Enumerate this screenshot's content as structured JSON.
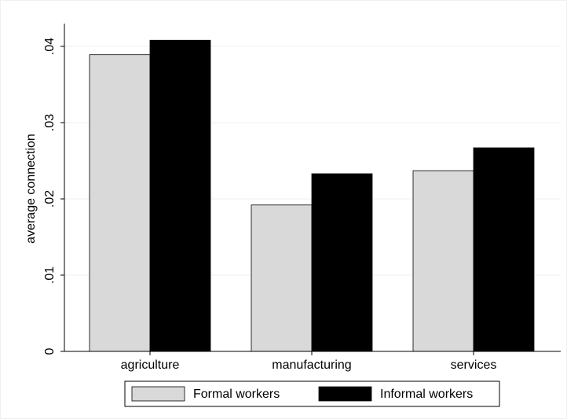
{
  "chart_data": {
    "type": "bar",
    "y_label": "average connection",
    "categories": [
      "agriculture",
      "manufacturing",
      "services"
    ],
    "series": [
      {
        "name": "Formal workers",
        "color": "#d9d9d9",
        "values": [
          0.0389,
          0.0192,
          0.0237
        ]
      },
      {
        "name": "Informal workers",
        "color": "#000000",
        "values": [
          0.0408,
          0.0233,
          0.0267
        ]
      }
    ],
    "ylim": [
      0,
      0.04
    ],
    "yticks": [
      0,
      {
        "value": 0.01,
        "label": ".01"
      },
      {
        "value": 0.02,
        "label": ".02"
      },
      {
        "value": 0.03,
        "label": ".03"
      },
      {
        "value": 0.04,
        "label": ".04"
      }
    ],
    "grid": true,
    "legend": "bottom"
  }
}
